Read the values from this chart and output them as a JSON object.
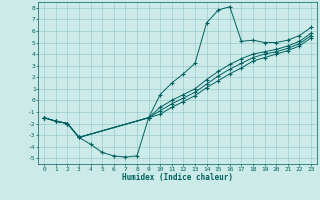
{
  "xlabel": "Humidex (Indice chaleur)",
  "bg_color": "#cceae8",
  "line_color": "#006060",
  "grid_color": "#99cccc",
  "xlim": [
    -0.5,
    23.5
  ],
  "ylim": [
    -5.5,
    8.5
  ],
  "xticks": [
    0,
    1,
    2,
    3,
    4,
    5,
    6,
    7,
    8,
    9,
    10,
    11,
    12,
    13,
    14,
    15,
    16,
    17,
    18,
    19,
    20,
    21,
    22,
    23
  ],
  "yticks": [
    -5,
    -4,
    -3,
    -2,
    -1,
    0,
    1,
    2,
    3,
    4,
    5,
    6,
    7,
    8
  ],
  "line1_x": [
    0,
    1,
    2,
    3,
    4,
    5,
    6,
    7,
    8,
    9,
    10,
    11,
    12,
    13,
    14,
    15,
    16,
    17,
    18,
    19,
    20,
    21,
    22,
    23
  ],
  "line1_y": [
    -1.5,
    -1.8,
    -2.0,
    -3.2,
    -3.8,
    -4.5,
    -4.8,
    -4.9,
    -4.8,
    -1.5,
    0.5,
    1.5,
    2.3,
    3.2,
    6.7,
    7.8,
    8.1,
    5.1,
    5.2,
    5.0,
    5.0,
    5.2,
    5.6,
    6.3
  ],
  "line2_x": [
    0,
    1,
    2,
    3,
    9,
    10,
    11,
    12,
    13,
    14,
    15,
    16,
    17,
    18,
    19,
    20,
    21,
    22,
    23
  ],
  "line2_y": [
    -1.5,
    -1.8,
    -2.0,
    -3.2,
    -1.5,
    -0.6,
    0.0,
    0.5,
    1.0,
    1.8,
    2.5,
    3.1,
    3.6,
    4.0,
    4.2,
    4.4,
    4.7,
    5.1,
    5.8
  ],
  "line3_x": [
    0,
    1,
    2,
    3,
    9,
    10,
    11,
    12,
    13,
    14,
    15,
    16,
    17,
    18,
    19,
    20,
    21,
    22,
    23
  ],
  "line3_y": [
    -1.5,
    -1.8,
    -2.0,
    -3.2,
    -1.5,
    -0.9,
    -0.3,
    0.2,
    0.7,
    1.4,
    2.1,
    2.7,
    3.2,
    3.7,
    4.0,
    4.2,
    4.5,
    4.9,
    5.6
  ],
  "line4_x": [
    0,
    1,
    2,
    3,
    9,
    10,
    11,
    12,
    13,
    14,
    15,
    16,
    17,
    18,
    19,
    20,
    21,
    22,
    23
  ],
  "line4_y": [
    -1.5,
    -1.8,
    -2.0,
    -3.2,
    -1.5,
    -1.2,
    -0.6,
    -0.1,
    0.4,
    1.1,
    1.7,
    2.3,
    2.8,
    3.4,
    3.7,
    4.0,
    4.3,
    4.7,
    5.4
  ]
}
